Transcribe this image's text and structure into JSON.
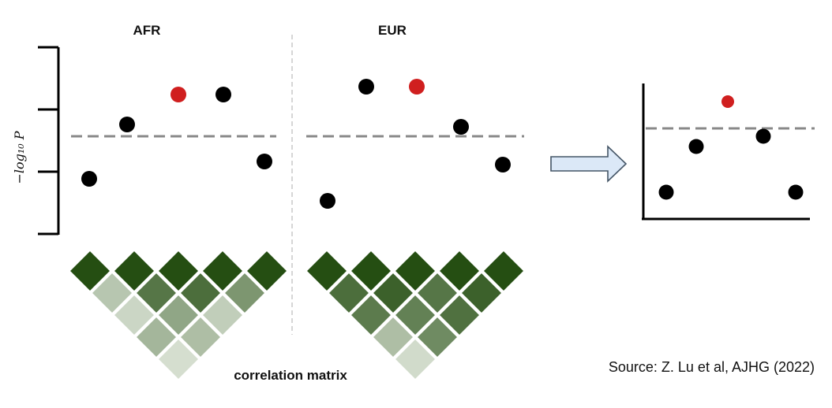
{
  "panels": {
    "afr": {
      "title": "AFR",
      "points": [
        {
          "color": "#000000"
        },
        {
          "color": "#000000"
        },
        {
          "color": "#d01f1f"
        },
        {
          "color": "#000000"
        },
        {
          "color": "#000000"
        }
      ]
    },
    "eur": {
      "title": "EUR",
      "points": [
        {
          "color": "#000000"
        },
        {
          "color": "#000000"
        },
        {
          "color": "#d01f1f"
        },
        {
          "color": "#000000"
        },
        {
          "color": "#000000"
        }
      ]
    },
    "combined": {
      "points": [
        {
          "color": "#000000"
        },
        {
          "color": "#000000"
        },
        {
          "color": "#d01f1f"
        },
        {
          "color": "#000000"
        },
        {
          "color": "#000000"
        }
      ]
    }
  },
  "y_axis_label": "−log₁₀ P",
  "matrix_label": "correlation matrix",
  "source": "Source: Z. Lu et al, AJHG (2022)",
  "colors": {
    "highlight": "#d01f1f",
    "threshold_line": "#8a8a8a",
    "arrow_fill": "#dbe8f7",
    "arrow_stroke": "#445566",
    "matrix_dark": "#254e12",
    "matrix_light": "#e8eee4"
  },
  "ld_matrices": {
    "afr": [
      [
        1.0,
        0.25,
        0.15,
        0.35,
        0.1
      ],
      [
        0.25,
        1.0,
        0.75,
        0.45,
        0.3
      ],
      [
        0.15,
        0.75,
        1.0,
        0.8,
        0.2
      ],
      [
        0.35,
        0.45,
        0.8,
        1.0,
        0.55
      ],
      [
        0.1,
        0.3,
        0.2,
        0.55,
        1.0
      ]
    ],
    "eur": [
      [
        1.0,
        0.8,
        0.72,
        0.3,
        0.12
      ],
      [
        0.8,
        1.0,
        0.88,
        0.68,
        0.62
      ],
      [
        0.72,
        0.88,
        1.0,
        0.75,
        0.78
      ],
      [
        0.3,
        0.68,
        0.75,
        1.0,
        0.88
      ],
      [
        0.12,
        0.62,
        0.78,
        0.88,
        1.0
      ]
    ]
  }
}
